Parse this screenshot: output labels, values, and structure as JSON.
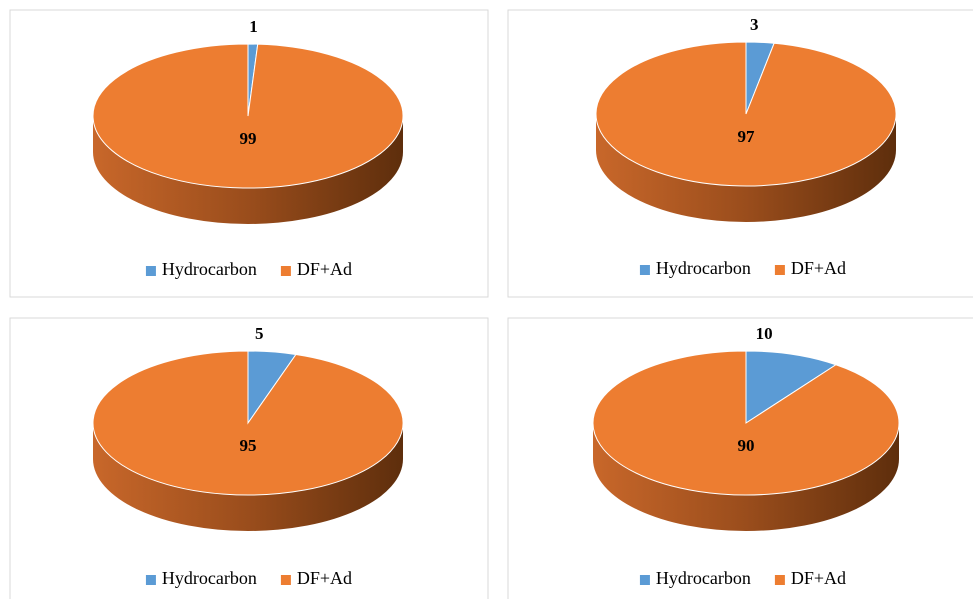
{
  "chart_data": [
    {
      "type": "pie",
      "categories": [
        "Hydrocarbon",
        "DF+Ad"
      ],
      "values": [
        1,
        99
      ],
      "colors": [
        "#5b9bd5",
        "#ed7d31"
      ],
      "legend": "bottom"
    },
    {
      "type": "pie",
      "categories": [
        "Hydrocarbon",
        "DF+Ad"
      ],
      "values": [
        3,
        97
      ],
      "colors": [
        "#5b9bd5",
        "#ed7d31"
      ],
      "legend": "bottom"
    },
    {
      "type": "pie",
      "categories": [
        "Hydrocarbon",
        "DF+Ad"
      ],
      "values": [
        5,
        95
      ],
      "colors": [
        "#5b9bd5",
        "#ed7d31"
      ],
      "legend": "bottom"
    },
    {
      "type": "pie",
      "categories": [
        "Hydrocarbon",
        "DF+Ad"
      ],
      "values": [
        10,
        90
      ],
      "colors": [
        "#5b9bd5",
        "#ed7d31"
      ],
      "legend": "bottom"
    }
  ]
}
